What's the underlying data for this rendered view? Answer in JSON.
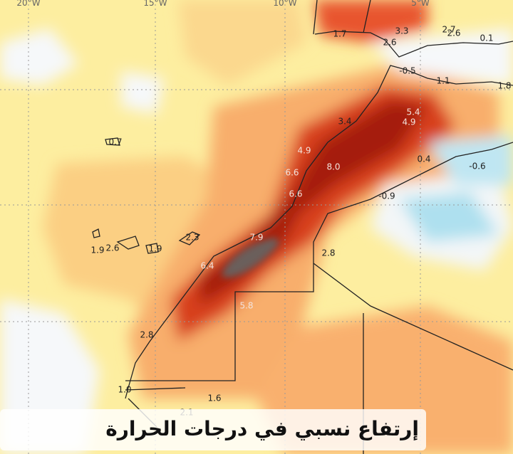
{
  "map": {
    "longitude_labels": [
      "20°W",
      "15°W",
      "10°W",
      "5°W"
    ],
    "anomaly_labels": [
      "1.7",
      "3.3",
      "2.6",
      "2.7",
      "2.6",
      "0.1",
      "-0.5",
      "1.1",
      "1.8",
      "5.4",
      "4.9",
      "3.4",
      "4.9",
      "8.0",
      "0.4",
      "-0.6",
      "6.6",
      "6.6",
      "-0.9",
      "0.7",
      "7.9",
      "1.9",
      "2.6",
      "1.9",
      "2.3",
      "6.4",
      "2.8",
      "5.8",
      "2.8",
      "1.0",
      "1.6",
      "2.1"
    ],
    "caption": "إرتفاع نسبي في درجات الحرارة"
  }
}
